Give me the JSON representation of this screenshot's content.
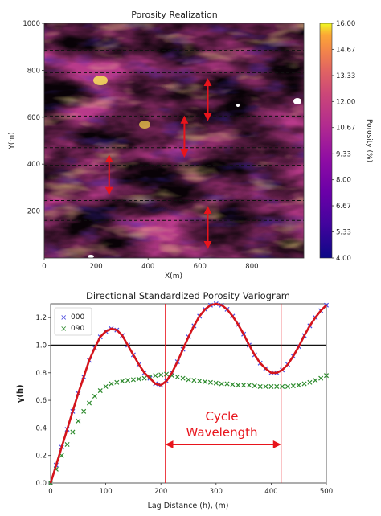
{
  "chart_data": [
    {
      "type": "heatmap",
      "title": "Porosity Realization",
      "xlabel": "X(m)",
      "ylabel": "Y(m)",
      "xlim": [
        0,
        1000
      ],
      "ylim": [
        0,
        1000
      ],
      "xticks": [
        "0",
        "200",
        "400",
        "600",
        "800"
      ],
      "yticks": [
        "200",
        "400",
        "600",
        "800",
        "1000"
      ],
      "colormap": "plasma",
      "colorbar": {
        "label": "Porosity (%)",
        "range": [
          4.0,
          16.0
        ],
        "ticks": [
          "16.00",
          "14.67",
          "13.33",
          "12.00",
          "10.67",
          "9.33",
          "8.00",
          "6.67",
          "5.33",
          "4.00"
        ]
      },
      "dashed_lines_y": [
        160,
        245,
        395,
        470,
        605,
        690,
        790,
        885
      ],
      "arrows": [
        {
          "x": 630,
          "y_from": 590,
          "y_to": 760
        },
        {
          "x": 540,
          "y_from": 435,
          "y_to": 600
        },
        {
          "x": 250,
          "y_from": 275,
          "y_to": 435
        },
        {
          "x": 630,
          "y_from": 45,
          "y_to": 215
        }
      ]
    },
    {
      "type": "line",
      "title": "Directional Standardized Porosity Variogram",
      "xlabel": "Lag Distance (h), (m)",
      "ylabel": "γ(h)",
      "xlim": [
        0,
        500
      ],
      "ylim": [
        0,
        1.3
      ],
      "xticks": [
        "0",
        "100",
        "200",
        "300",
        "400",
        "500"
      ],
      "yticks": [
        "0.0",
        "0.2",
        "0.4",
        "0.6",
        "0.8",
        "1.0",
        "1.2"
      ],
      "sill": 1.0,
      "legend": {
        "position": "top-left",
        "entries": [
          "000",
          "090"
        ]
      },
      "series": [
        {
          "name": "000",
          "color": "#4a4ae0",
          "marker": "x",
          "x": [
            0,
            10,
            20,
            30,
            40,
            50,
            60,
            70,
            80,
            90,
            100,
            110,
            120,
            130,
            140,
            150,
            160,
            170,
            180,
            190,
            200,
            210,
            220,
            230,
            240,
            250,
            260,
            270,
            280,
            290,
            300,
            310,
            320,
            330,
            340,
            350,
            360,
            370,
            380,
            390,
            400,
            410,
            420,
            430,
            440,
            450,
            460,
            470,
            480,
            490,
            500
          ],
          "y": [
            0.0,
            0.13,
            0.26,
            0.39,
            0.52,
            0.65,
            0.77,
            0.89,
            0.98,
            1.06,
            1.1,
            1.12,
            1.11,
            1.07,
            1.0,
            0.93,
            0.86,
            0.8,
            0.76,
            0.72,
            0.71,
            0.74,
            0.8,
            0.88,
            0.97,
            1.06,
            1.14,
            1.21,
            1.26,
            1.29,
            1.3,
            1.29,
            1.26,
            1.21,
            1.15,
            1.08,
            1.0,
            0.93,
            0.87,
            0.83,
            0.8,
            0.8,
            0.82,
            0.86,
            0.92,
            0.99,
            1.07,
            1.14,
            1.2,
            1.25,
            1.29
          ]
        },
        {
          "name": "090",
          "color": "#2e8b2e",
          "marker": "x",
          "x": [
            0,
            10,
            20,
            30,
            40,
            50,
            60,
            70,
            80,
            90,
            100,
            110,
            120,
            130,
            140,
            150,
            160,
            170,
            180,
            190,
            200,
            210,
            220,
            230,
            240,
            250,
            260,
            270,
            280,
            290,
            300,
            310,
            320,
            330,
            340,
            350,
            360,
            370,
            380,
            390,
            400,
            410,
            420,
            430,
            440,
            450,
            460,
            470,
            480,
            490,
            500
          ],
          "y": [
            0.0,
            0.1,
            0.2,
            0.28,
            0.37,
            0.45,
            0.52,
            0.58,
            0.63,
            0.67,
            0.7,
            0.72,
            0.73,
            0.74,
            0.745,
            0.75,
            0.755,
            0.76,
            0.77,
            0.78,
            0.785,
            0.79,
            0.78,
            0.77,
            0.76,
            0.75,
            0.745,
            0.74,
            0.735,
            0.73,
            0.725,
            0.72,
            0.72,
            0.715,
            0.71,
            0.71,
            0.71,
            0.705,
            0.7,
            0.7,
            0.7,
            0.7,
            0.7,
            0.7,
            0.705,
            0.71,
            0.72,
            0.73,
            0.745,
            0.76,
            0.78
          ]
        }
      ],
      "cycle_markers_x": [
        208,
        418
      ],
      "annotation": {
        "line1": "Cycle",
        "line2": "Wavelength",
        "arrow_from": 208,
        "arrow_to": 418,
        "arrow_y": 0.28
      },
      "annotation_color": "#e8141c"
    }
  ]
}
